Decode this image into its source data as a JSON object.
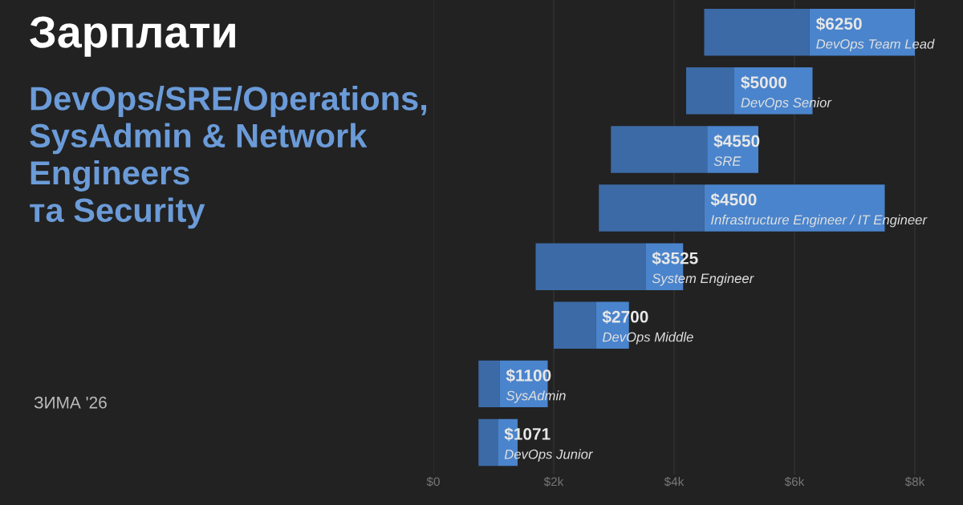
{
  "chart_data": {
    "type": "bar",
    "orientation": "horizontal",
    "title": "Зарплати",
    "subtitle": "DevOps/SRE/Operations,\nSysAdmin & Network\nEngineers\nта Security",
    "categories": [
      "DevOps Team Lead",
      "DevOps Senior",
      "SRE",
      "Infrastructure Engineer / IT Engineer",
      "System Engineer",
      "DevOps Middle",
      "SysAdmin",
      "DevOps Junior"
    ],
    "series": [
      {
        "color": "#3c6aa6",
        "base": [
          4500,
          4200,
          2950,
          2750,
          1700,
          2000,
          750,
          750
        ],
        "values": [
          1750,
          800,
          1600,
          1750,
          1825,
          700,
          350,
          321
        ],
        "value_labels": [
          "$6250",
          "$5000",
          "$4550",
          "$4500",
          "$3525",
          "$2700",
          "$1100",
          "$1071"
        ]
      },
      {
        "color": "#4a84cc",
        "base": [
          6250,
          5000,
          4550,
          4500,
          3525,
          2700,
          1100,
          1071
        ],
        "values": [
          1750,
          1300,
          850,
          3000,
          625,
          550,
          800,
          329
        ]
      }
    ],
    "annotations": [
      "ЗИМА '26"
    ],
    "xlim": [
      0,
      8800
    ],
    "xticks": [
      {
        "value": 0,
        "label": "$0"
      },
      {
        "value": 2000,
        "label": "$2k"
      },
      {
        "value": 4000,
        "label": "$4k"
      },
      {
        "value": 6000,
        "label": "$6k"
      },
      {
        "value": 8000,
        "label": "$8k"
      }
    ],
    "grid": "x",
    "legend": false
  }
}
